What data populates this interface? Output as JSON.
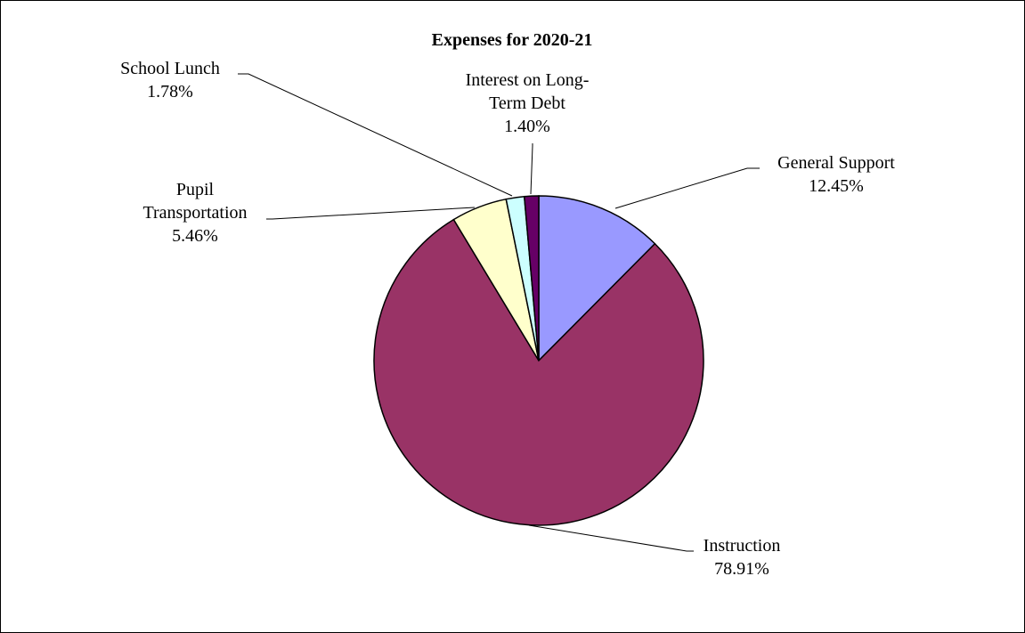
{
  "chart_data": {
    "type": "pie",
    "title": "Expenses for 2020-21",
    "slices": [
      {
        "label_lines": [
          "General Support"
        ],
        "pct_label": "12.45%",
        "value": 12.45,
        "color": "#9999ff"
      },
      {
        "label_lines": [
          "Instruction"
        ],
        "pct_label": "78.91%",
        "value": 78.91,
        "color": "#993366"
      },
      {
        "label_lines": [
          "Pupil",
          "Transportation"
        ],
        "pct_label": "5.46%",
        "value": 5.46,
        "color": "#ffffcc"
      },
      {
        "label_lines": [
          "School Lunch"
        ],
        "pct_label": "1.78%",
        "value": 1.78,
        "color": "#ccffff"
      },
      {
        "label_lines": [
          "Interest on Long-",
          "Term Debt"
        ],
        "pct_label": "1.40%",
        "value": 1.4,
        "color": "#660066"
      }
    ],
    "start_angle": "12 o'clock",
    "direction": "clockwise",
    "legend": "none (leader-line labels)"
  }
}
